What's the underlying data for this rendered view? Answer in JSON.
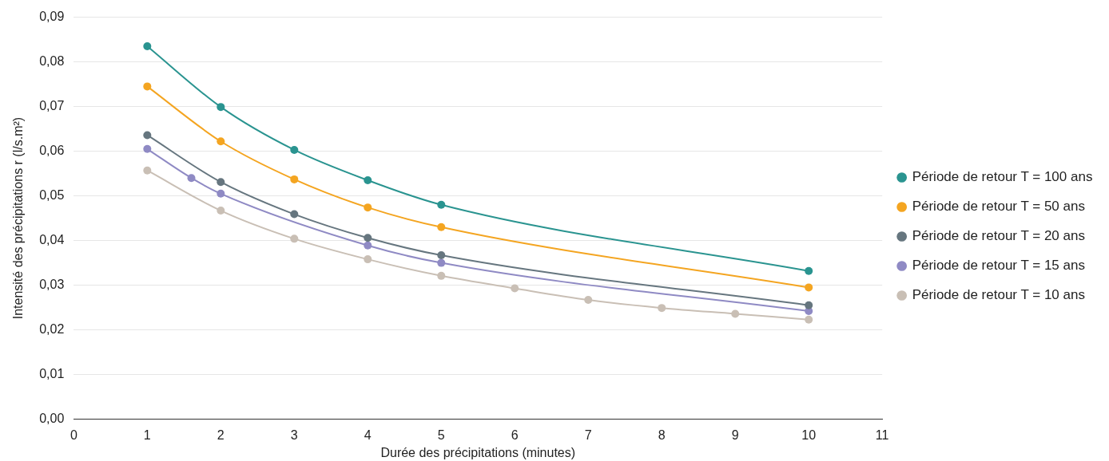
{
  "chart_data": {
    "type": "line",
    "xlabel": "Durée des précipitations (minutes)",
    "ylabel": "Intensité des précipitations r (l/s.m²)",
    "xlim": [
      0,
      11
    ],
    "xticks": [
      0,
      1,
      2,
      3,
      4,
      5,
      6,
      7,
      8,
      9,
      10,
      11
    ],
    "ylim": [
      0,
      0.09
    ],
    "yticks": [
      {
        "value": 0,
        "label": "0,00"
      },
      {
        "value": 0.01,
        "label": "0,01"
      },
      {
        "value": 0.02,
        "label": "0,02"
      },
      {
        "value": 0.03,
        "label": "0,03"
      },
      {
        "value": 0.04,
        "label": "0,04"
      },
      {
        "value": 0.05,
        "label": "0,05"
      },
      {
        "value": 0.06,
        "label": "0,06"
      },
      {
        "value": 0.07,
        "label": "0,07"
      },
      {
        "value": 0.08,
        "label": "0,08"
      },
      {
        "value": 0.09,
        "label": "0,09"
      }
    ],
    "grid": "y",
    "legend": "right",
    "marker": "circle",
    "line_style": "solid",
    "series": [
      {
        "name": "Période de retour T = 100 ans",
        "color": "#2a9490",
        "x": [
          1,
          2,
          3,
          4,
          5,
          10
        ],
        "values": [
          0.0835,
          0.0699,
          0.0603,
          0.0535,
          0.048,
          0.0332
        ]
      },
      {
        "name": "Période de retour T = 50 ans",
        "color": "#f4a521",
        "x": [
          1,
          2,
          3,
          4,
          5,
          10
        ],
        "values": [
          0.0745,
          0.0622,
          0.0537,
          0.0474,
          0.043,
          0.0295
        ]
      },
      {
        "name": "Période de retour T = 20 ans",
        "color": "#66767f",
        "x": [
          1,
          2,
          3,
          4,
          5,
          10
        ],
        "values": [
          0.0636,
          0.0531,
          0.0459,
          0.0406,
          0.0367,
          0.0255
        ]
      },
      {
        "name": "Période de retour T = 15 ans",
        "color": "#8f8ac4",
        "x": [
          1,
          1.6,
          2,
          4,
          5,
          10
        ],
        "values": [
          0.0605,
          0.054,
          0.0505,
          0.0389,
          0.035,
          0.0242
        ]
      },
      {
        "name": "Période de retour T = 10 ans",
        "color": "#c9bfb5",
        "x": [
          1,
          2,
          3,
          4,
          5,
          6,
          7,
          8,
          9,
          10
        ],
        "values": [
          0.0557,
          0.0467,
          0.0404,
          0.0358,
          0.0321,
          0.0293,
          0.0267,
          0.0249,
          0.0236,
          0.0223
        ]
      }
    ]
  }
}
